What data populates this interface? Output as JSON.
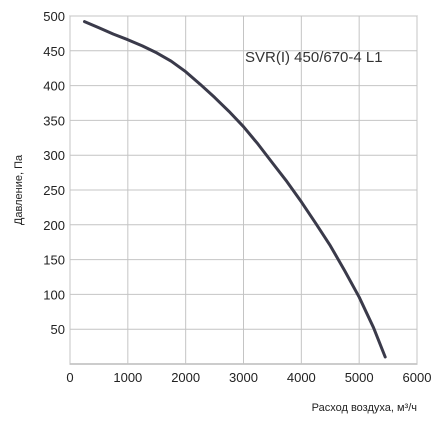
{
  "chart_data": {
    "type": "line",
    "xlabel": "Расход воздуха, м³/ч",
    "ylabel": "Давление, Па",
    "xlim": [
      0,
      6000
    ],
    "ylim": [
      0,
      500
    ],
    "x_ticks": [
      "0",
      "1000",
      "2000",
      "3000",
      "4000",
      "5000",
      "6000"
    ],
    "y_ticks": [
      "50",
      "100",
      "150",
      "200",
      "250",
      "300",
      "350",
      "400",
      "450",
      "500"
    ],
    "grid": true,
    "series": [
      {
        "name": "SVR(I) 450/670-4 L1",
        "color": "#3a3a4a",
        "points": [
          [
            250,
            492
          ],
          [
            500,
            483
          ],
          [
            750,
            474
          ],
          [
            1000,
            466
          ],
          [
            1250,
            457
          ],
          [
            1500,
            447
          ],
          [
            1750,
            435
          ],
          [
            2000,
            420
          ],
          [
            2250,
            402
          ],
          [
            2500,
            383
          ],
          [
            2750,
            363
          ],
          [
            3000,
            341
          ],
          [
            3250,
            316
          ],
          [
            3500,
            289
          ],
          [
            3750,
            262
          ],
          [
            4000,
            233
          ],
          [
            4250,
            202
          ],
          [
            4500,
            170
          ],
          [
            4750,
            134
          ],
          [
            5000,
            96
          ],
          [
            5250,
            52
          ],
          [
            5450,
            10
          ]
        ]
      }
    ]
  }
}
